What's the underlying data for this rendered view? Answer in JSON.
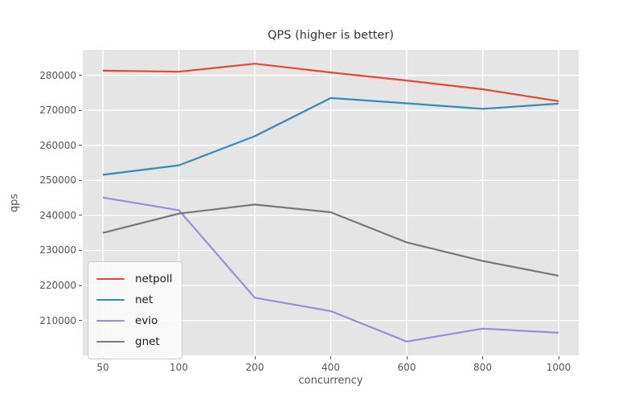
{
  "figure": {
    "title": "QPS (higher is better)",
    "xlabel": "concurrency",
    "ylabel": "qps"
  },
  "chart_data": {
    "type": "line",
    "title": "QPS (higher is better)",
    "xlabel": "concurrency",
    "ylabel": "qps",
    "categories": [
      50,
      100,
      200,
      400,
      600,
      800,
      1000
    ],
    "series": [
      {
        "name": "netpoll",
        "color": "#E24A33",
        "values": [
          281300,
          281000,
          283300,
          280800,
          278500,
          276000,
          272600
        ]
      },
      {
        "name": "net",
        "color": "#348ABD",
        "values": [
          251600,
          254300,
          262600,
          273500,
          272000,
          270400,
          271900
        ]
      },
      {
        "name": "evio",
        "color": "#988ED5",
        "values": [
          245100,
          241500,
          216500,
          212700,
          204000,
          207700,
          206500
        ]
      },
      {
        "name": "gnet",
        "color": "#777777",
        "values": [
          235000,
          240500,
          243100,
          240900,
          232300,
          227000,
          222800
        ]
      }
    ],
    "yticks": [
      210000,
      220000,
      230000,
      240000,
      250000,
      260000,
      270000,
      280000
    ],
    "ylim": [
      200050,
      287250
    ],
    "grid": true,
    "legend_position": "lower-left",
    "legend_entries": [
      "netpoll",
      "net",
      "evio",
      "gnet"
    ],
    "colors": {
      "axes_background": "#E5E5E5",
      "gridline": "#FFFFFF",
      "tick_label": "#555555",
      "title_text": "#333333"
    }
  }
}
